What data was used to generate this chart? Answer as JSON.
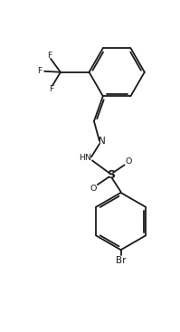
{
  "background_color": "#ffffff",
  "line_color": "#1a1a1a",
  "line_width": 1.3,
  "fig_width": 1.99,
  "fig_height": 3.67,
  "dpi": 100,
  "xlim": [
    0,
    10
  ],
  "ylim": [
    0,
    18.5
  ]
}
